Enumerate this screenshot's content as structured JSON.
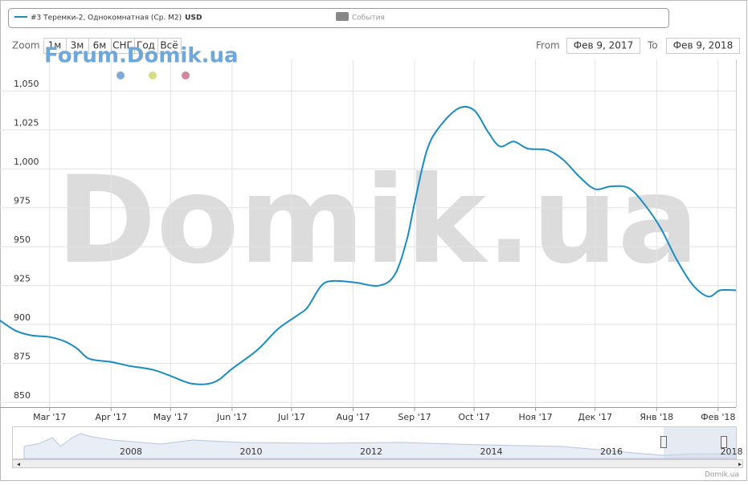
{
  "chart_data": {
    "type": "line",
    "x": [
      "2017-02-04",
      "2017-02-12",
      "2017-02-20",
      "2017-03-01",
      "2017-03-09",
      "2017-03-15",
      "2017-03-21",
      "2017-04-01",
      "2017-04-10",
      "2017-04-22",
      "2017-05-01",
      "2017-05-12",
      "2017-05-23",
      "2017-06-01",
      "2017-06-14",
      "2017-06-24",
      "2017-07-04",
      "2017-07-09",
      "2017-07-16",
      "2017-07-22",
      "2017-08-02",
      "2017-08-14",
      "2017-08-22",
      "2017-08-28",
      "2017-09-01",
      "2017-09-07",
      "2017-09-13",
      "2017-09-23",
      "2017-10-01",
      "2017-10-08",
      "2017-10-14",
      "2017-10-21",
      "2017-10-28",
      "2017-11-07",
      "2017-11-15",
      "2017-11-23",
      "2017-12-01",
      "2017-12-09",
      "2017-12-18",
      "2017-12-26",
      "2018-01-03",
      "2018-01-11",
      "2018-01-19",
      "2018-01-27",
      "2018-02-02",
      "2018-02-10"
    ],
    "series": [
      {
        "name": "#3 Теремки-2, Однокомнатная (Ср. М2)",
        "color": "#1a8cc4",
        "values": [
          902.6,
          896,
          893,
          892,
          889,
          884.5,
          878,
          876,
          873.5,
          871,
          867,
          862,
          863,
          871.6,
          884,
          897,
          906,
          911,
          925,
          928,
          927,
          925,
          932,
          954,
          978,
          1011,
          1026,
          1038.7,
          1037.6,
          1023.7,
          1014.4,
          1017.5,
          1013,
          1012,
          1005.7,
          995,
          987,
          988.7,
          987.6,
          977,
          962,
          942,
          925.8,
          918,
          922,
          922
        ]
      }
    ],
    "xlim": [
      "2017-02-04",
      "2018-02-10"
    ],
    "xticks": [
      {
        "value": "2017-03-01",
        "label": "Mar '17"
      },
      {
        "value": "2017-04-01",
        "label": "Apr '17"
      },
      {
        "value": "2017-05-01",
        "label": "May '17"
      },
      {
        "value": "2017-06-01",
        "label": "Jun '17"
      },
      {
        "value": "2017-07-01",
        "label": "Jul '17"
      },
      {
        "value": "2017-08-01",
        "label": "Aug '17"
      },
      {
        "value": "2017-09-01",
        "label": "Sep '17"
      },
      {
        "value": "2017-10-01",
        "label": "Oct '17"
      },
      {
        "value": "2017-11-01",
        "label": "Ноя '17"
      },
      {
        "value": "2017-12-01",
        "label": "Дек '17"
      },
      {
        "value": "2018-01-01",
        "label": "Янв '18"
      },
      {
        "value": "2018-02-01",
        "label": "Фев '18"
      }
    ],
    "ylim": [
      847,
      1070
    ],
    "yticks": [
      850,
      875,
      900,
      925,
      950,
      975,
      {
        "value": 1000,
        "label": "1,000"
      },
      {
        "value": 1025,
        "label": "1,025"
      },
      {
        "value": 1050,
        "label": "1,050"
      }
    ],
    "grid": true
  },
  "ui": {
    "legend_unit": "USD",
    "events": "События",
    "zoom": "Zoom",
    "zoom_buttons": [
      "1м",
      "3м",
      "6м",
      "СНГ",
      "Год",
      "Всё"
    ],
    "from": "From",
    "from_date": "Фев 9, 2017",
    "to": "To",
    "to_date": "Фев 9, 2018",
    "watermark_small": "Forum.Domik.ua",
    "watermark_big": "Domik.ua",
    "navigator_years": [
      "2008",
      "2010",
      "2012",
      "2014",
      "2016",
      "2018"
    ],
    "credit": "Domik.ua"
  }
}
